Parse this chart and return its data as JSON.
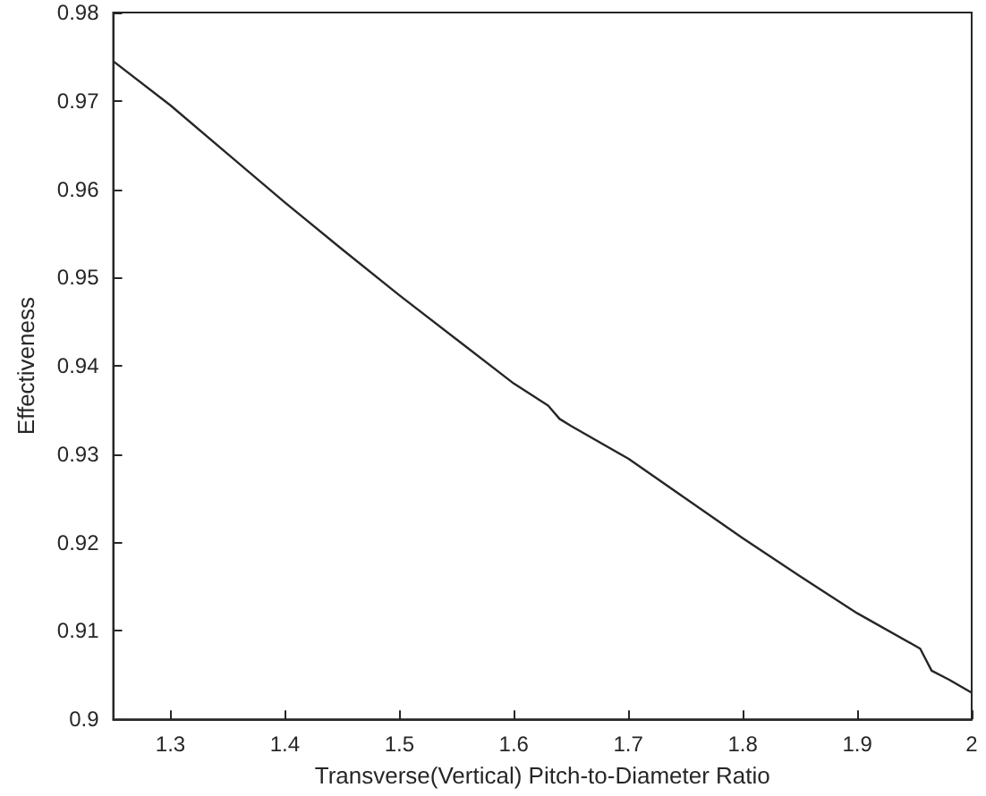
{
  "chart_data": {
    "type": "line",
    "xlabel": "Transverse(Vertical) Pitch-to-Diameter Ratio",
    "ylabel": "Effectiveness",
    "series": [
      {
        "color": "#262626",
        "x": [
          1.25,
          1.3,
          1.35,
          1.4,
          1.45,
          1.5,
          1.55,
          1.6,
          1.63,
          1.64,
          1.65,
          1.7,
          1.75,
          1.8,
          1.85,
          1.9,
          1.955,
          1.965,
          1.98,
          2.0
        ],
        "values": [
          0.9745,
          0.9695,
          0.964,
          0.9585,
          0.9532,
          0.948,
          0.943,
          0.938,
          0.9355,
          0.934,
          0.9332,
          0.9295,
          0.925,
          0.9205,
          0.9162,
          0.912,
          0.908,
          0.9055,
          0.9045,
          0.903
        ]
      }
    ],
    "xlim": [
      1.25,
      2
    ],
    "xticks": [
      1.3,
      1.4,
      1.5,
      1.6,
      1.7,
      1.8,
      1.9,
      2
    ],
    "ylim": [
      0.9,
      0.98
    ],
    "yticks": [
      0.9,
      0.91,
      0.92,
      0.93,
      0.94,
      0.95,
      0.96,
      0.97,
      0.98
    ],
    "grid": false,
    "marker": "none",
    "line_style": "solid"
  }
}
